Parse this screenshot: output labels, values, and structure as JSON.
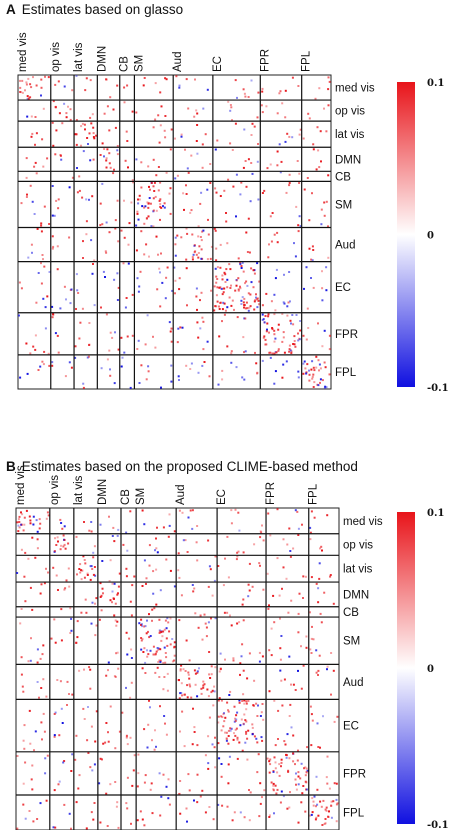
{
  "panels": [
    {
      "letter": "A",
      "title": "Estimates based on glasso"
    },
    {
      "letter": "B",
      "title": "Estimates based on the proposed CLIME-based method"
    }
  ],
  "chart_data": [
    {
      "type": "heatmap",
      "title": "Estimates based on glasso",
      "column_labels": [
        "med vis",
        "op vis",
        "lat vis",
        "DMN",
        "CB",
        "SM",
        "Aud",
        "EC",
        "FPR",
        "FPL"
      ],
      "row_labels": [
        "med vis",
        "op vis",
        "lat vis",
        "DMN",
        "CB",
        "SM",
        "Aud",
        "EC",
        "FPR",
        "FPL"
      ],
      "colorbar": {
        "ticks": [
          0.1,
          0,
          -0.1
        ],
        "tick_labels": [
          "0.1",
          "0",
          "-0.1"
        ],
        "range": [
          -0.1,
          0.1
        ]
      },
      "colors": {
        "positive": "#e8141a",
        "zero": "#ffffff",
        "negative": "#1010e0"
      },
      "approx_block_density": {
        "med vis": 0.35,
        "op vis": 0.25,
        "lat vis": 0.35,
        "DMN": 0.3,
        "CB": 0.05,
        "SM": 0.35,
        "Aud": 0.3,
        "EC": 0.5,
        "FPR": 0.45,
        "FPL": 0.45
      },
      "note_negative_rows": [
        "EC",
        "FPL"
      ]
    },
    {
      "type": "heatmap",
      "title": "Estimates based on the proposed CLIME-based method",
      "column_labels": [
        "med vis",
        "op vis",
        "lat vis",
        "DMN",
        "CB",
        "SM",
        "Aud",
        "EC",
        "FPR",
        "FPL"
      ],
      "row_labels": [
        "med vis",
        "op vis",
        "lat vis",
        "DMN",
        "CB",
        "SM",
        "Aud",
        "EC",
        "FPR",
        "FPL"
      ],
      "colorbar": {
        "ticks": [
          0.1,
          0,
          -0.1
        ],
        "tick_labels": [
          "0.1",
          "0",
          "-0.1"
        ],
        "range": [
          -0.1,
          0.1
        ]
      },
      "colors": {
        "positive": "#e8141a",
        "zero": "#ffffff",
        "negative": "#1010e0"
      },
      "approx_block_density": {
        "med vis": 0.4,
        "op vis": 0.35,
        "lat vis": 0.4,
        "DMN": 0.35,
        "CB": 0.05,
        "SM": 0.45,
        "Aud": 0.4,
        "EC": 0.4,
        "FPR": 0.4,
        "FPL": 0.4
      },
      "note_negative_rows": []
    }
  ]
}
